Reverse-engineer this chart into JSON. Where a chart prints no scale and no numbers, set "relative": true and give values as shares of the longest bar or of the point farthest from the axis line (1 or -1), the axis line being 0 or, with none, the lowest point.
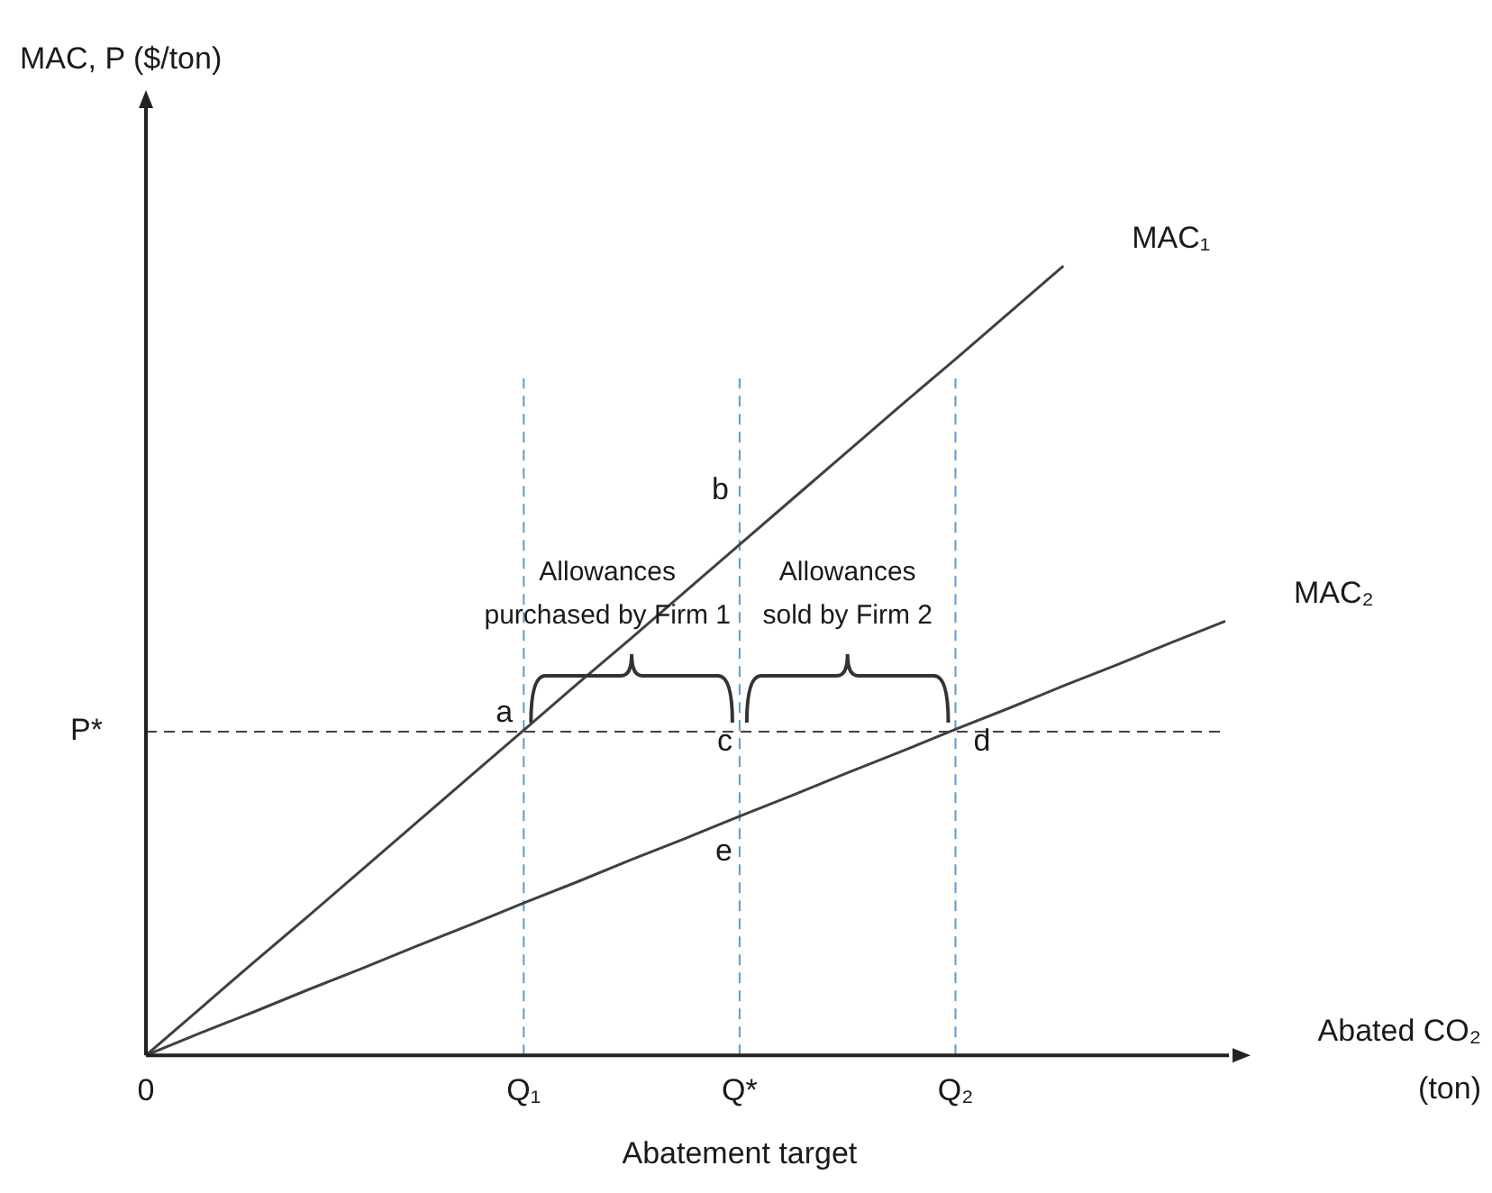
{
  "chart_data": {
    "type": "line",
    "relative": true,
    "xlabel": "Abated CO₂ (ton)",
    "categories": [
      "0",
      null,
      null,
      null,
      null,
      null,
      null,
      "Q₁",
      null,
      null,
      null,
      "Q*",
      null,
      null,
      null,
      "Q₂",
      null,
      null,
      null,
      null,
      null
    ],
    "series": [
      {
        "name": "MAC₁",
        "color": "#404040",
        "values": [
          0,
          0.059,
          0.118,
          0.176,
          0.235,
          0.294,
          0.353,
          0.412,
          0.471,
          0.529,
          0.588,
          0.647,
          0.706,
          0.765,
          0.824,
          0.882,
          0.941,
          1,
          null,
          null,
          null
        ]
      },
      {
        "name": "MAC₂",
        "color": "#404040",
        "values": [
          0,
          0.028,
          0.055,
          0.083,
          0.11,
          0.138,
          0.165,
          0.193,
          0.22,
          0.248,
          0.275,
          0.303,
          0.33,
          0.358,
          0.385,
          0.413,
          0.44,
          0.468,
          0.495,
          0.523,
          0.55
        ]
      }
    ],
    "ref_lines": [
      {
        "axis": "y",
        "value": 0.41,
        "label": "P*",
        "color": "#404040",
        "line_style": "dashed"
      },
      {
        "axis": "x",
        "value": "Q₁",
        "label": null,
        "color": "#5b9bd5",
        "line_style": "dashed"
      },
      {
        "axis": "x",
        "value": "Q*",
        "label": null,
        "color": "#5b9bd5",
        "line_style": "dashed"
      },
      {
        "axis": "x",
        "value": "Q₂",
        "label": null,
        "color": "#5b9bd5",
        "line_style": "dashed"
      }
    ],
    "annotations": [
      {
        "text": "a",
        "x": "Q₁",
        "y": 0.41
      },
      {
        "text": "b",
        "x": "Q*",
        "y": 0.647
      },
      {
        "text": "c",
        "x": "Q*",
        "y": 0.41
      },
      {
        "text": "d",
        "x": "Q₂",
        "y": 0.41
      },
      {
        "text": "e",
        "x": "Q*",
        "y": 0.303
      },
      "Allowances purchased by Firm 1",
      "Allowances sold by Firm 2",
      "Abatement target",
      "MAC, P ($/ton)"
    ],
    "legend": false,
    "grid": false,
    "marker": "none",
    "line_style": "solid"
  }
}
